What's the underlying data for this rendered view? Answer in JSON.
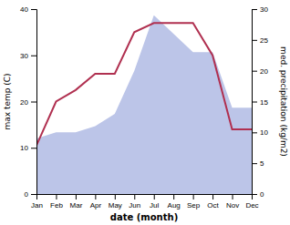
{
  "chart_data": {
    "type": "line",
    "xlabel": "date (month)",
    "ylabel": "max temp (C)",
    "y2label": "med. precipitation (kg/m2)",
    "categories": [
      "Jan",
      "Feb",
      "Mar",
      "Apr",
      "May",
      "Jun",
      "Jul",
      "Aug",
      "Sep",
      "Oct",
      "Nov",
      "Dec"
    ],
    "series": [
      {
        "type": "area",
        "axis": "y2",
        "color": "#bcc5e8",
        "values": [
          9,
          10,
          10,
          11,
          13,
          20,
          29,
          26,
          23,
          23,
          14,
          14
        ]
      },
      {
        "type": "line",
        "color": "#b03050",
        "values": [
          10.5,
          20.0,
          22.5,
          26.0,
          26.0,
          35.0,
          37.0,
          37.0,
          37.0,
          30.0,
          14.0,
          14.0
        ]
      }
    ],
    "ylim": [
      0,
      40
    ],
    "yticks": [
      0,
      10,
      20,
      30,
      40
    ],
    "y2lim": [
      0,
      30
    ],
    "y2ticks": [
      0,
      5,
      10,
      15,
      20,
      25,
      30
    ],
    "grid": false
  }
}
